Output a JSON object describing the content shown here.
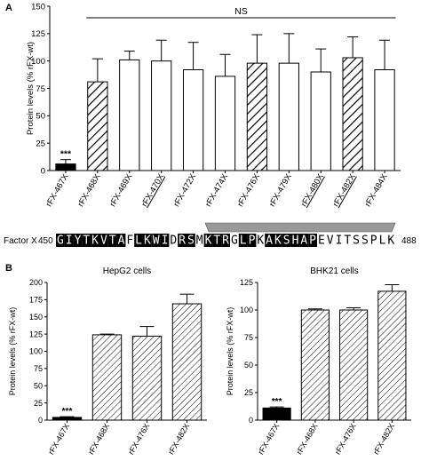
{
  "panel_a_letter": "A",
  "panel_b_letter": "B",
  "sequence": {
    "label": "Factor X",
    "start": "450",
    "end": "488",
    "residues": "GIYTKVTAFLKWIDRSMKTRGLPKAKSHAPEVITSSPLK",
    "highlighted": [
      0,
      1,
      2,
      3,
      4,
      5,
      6,
      7,
      9,
      10,
      11,
      12,
      14,
      15,
      17,
      18,
      19,
      21,
      22,
      24,
      25,
      26,
      27,
      28,
      29
    ]
  },
  "chart_data": [
    {
      "type": "bar",
      "panel": "A",
      "ylabel": "Protein levels (% rFX-wt)",
      "ylim": [
        0,
        150
      ],
      "yticks": [
        0,
        25,
        50,
        75,
        100,
        125,
        150
      ],
      "categories": [
        "rFX-467X",
        "rFX-468X",
        "rFX-469X",
        "rFX-470X",
        "rFX-472X",
        "rFX-474X",
        "rFX-476X",
        "rFX-479X",
        "rFX-480X",
        "rFX-482X",
        "rFX-484X"
      ],
      "values": [
        6,
        81,
        101,
        100,
        92,
        86,
        98,
        98,
        90,
        103,
        92
      ],
      "errors": [
        4,
        21,
        8,
        19,
        25,
        20,
        26,
        27,
        21,
        19,
        27
      ],
      "fills": [
        "solid",
        "hatch",
        "open",
        "open",
        "open",
        "open",
        "hatch",
        "open",
        "open",
        "hatch",
        "open"
      ],
      "underlined": [
        3,
        8,
        9
      ],
      "annotations": [
        {
          "text": "***",
          "category": 0
        },
        {
          "text": "NS",
          "from": 1,
          "to": 10
        }
      ],
      "grid": false
    },
    {
      "type": "bar",
      "panel": "B",
      "title": "HepG2 cells",
      "ylabel": "Protein levels (% rFX-wt)",
      "ylim": [
        0,
        200
      ],
      "yticks": [
        0,
        25,
        50,
        75,
        100,
        125,
        150,
        175,
        200
      ],
      "categories": [
        "rFX-467X",
        "rFX-468X",
        "rFX-476X",
        "rFX-482X"
      ],
      "values": [
        4,
        124,
        122,
        169
      ],
      "errors": [
        1,
        1,
        14,
        14
      ],
      "fills": [
        "solid",
        "hatch",
        "hatch",
        "hatch"
      ],
      "annotations": [
        {
          "text": "***",
          "category": 0
        }
      ],
      "grid": false
    },
    {
      "type": "bar",
      "panel": "B",
      "title": "BHK21 cells",
      "ylabel": "Protein levels (% rFX-wt)",
      "ylim": [
        0,
        125
      ],
      "yticks": [
        0,
        25,
        50,
        75,
        100,
        125
      ],
      "categories": [
        "rFX-467X",
        "rFX-468X",
        "rFX-476X",
        "rFX-482X"
      ],
      "values": [
        11,
        100,
        100,
        117
      ],
      "errors": [
        1,
        1,
        2,
        6
      ],
      "fills": [
        "solid",
        "hatch",
        "hatch",
        "hatch"
      ],
      "annotations": [
        {
          "text": "***",
          "category": 0
        }
      ],
      "grid": false
    }
  ]
}
